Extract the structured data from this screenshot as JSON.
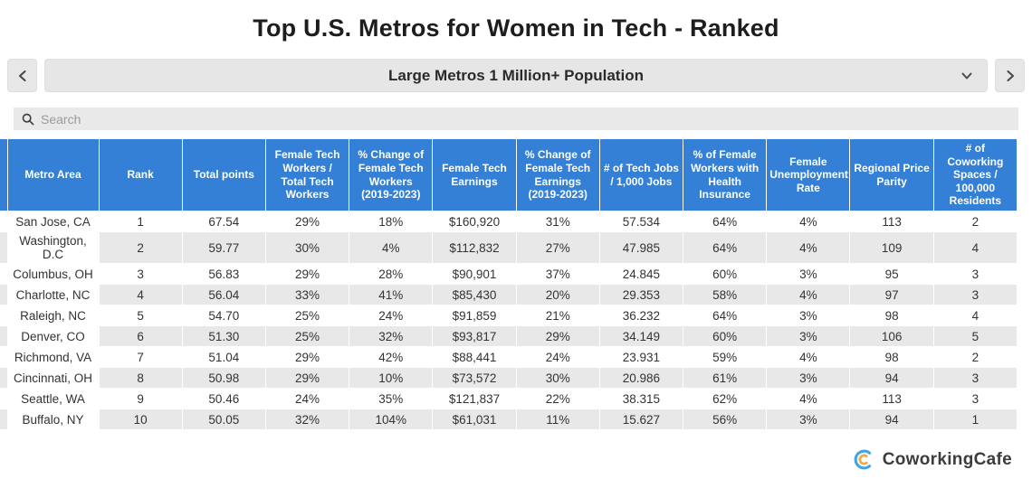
{
  "title": "Top U.S. Metros for Women in Tech - Ranked",
  "nav": {
    "prev_icon": "chevron-left-icon",
    "next_icon": "chevron-right-icon",
    "dropdown": {
      "selected": "Large Metros 1 Million+ Population",
      "caret_icon": "chevron-down-icon"
    }
  },
  "search": {
    "placeholder": "Search",
    "icon": "search-icon"
  },
  "table": {
    "columns": [
      "Metro Area",
      "Rank",
      "Total points",
      "Female Tech Workers / Total Tech Workers",
      "% Change of Female Tech Workers (2019-2023)",
      "Female Tech Earnings",
      "% Change of Female Tech Earnings (2019-2023)",
      "# of Tech Jobs / 1,000 Jobs",
      "% of Female Workers with Health Insurance",
      "Female Unemployment Rate",
      "Regional Price Parity",
      "# of Coworking Spaces / 100,000 Residents"
    ],
    "rows": [
      [
        "San Jose, CA",
        "1",
        "67.54",
        "29%",
        "18%",
        "$160,920",
        "31%",
        "57.534",
        "64%",
        "4%",
        "113",
        "2"
      ],
      [
        "Washington, D.C",
        "2",
        "59.77",
        "30%",
        "4%",
        "$112,832",
        "27%",
        "47.985",
        "64%",
        "4%",
        "109",
        "4"
      ],
      [
        "Columbus, OH",
        "3",
        "56.83",
        "29%",
        "28%",
        "$90,901",
        "37%",
        "24.845",
        "60%",
        "3%",
        "95",
        "3"
      ],
      [
        "Charlotte, NC",
        "4",
        "56.04",
        "33%",
        "41%",
        "$85,430",
        "20%",
        "29.353",
        "58%",
        "4%",
        "97",
        "3"
      ],
      [
        "Raleigh, NC",
        "5",
        "54.70",
        "25%",
        "24%",
        "$91,859",
        "21%",
        "36.232",
        "64%",
        "3%",
        "98",
        "4"
      ],
      [
        "Denver, CO",
        "6",
        "51.30",
        "25%",
        "32%",
        "$93,817",
        "29%",
        "34.149",
        "60%",
        "3%",
        "106",
        "5"
      ],
      [
        "Richmond, VA",
        "7",
        "51.04",
        "29%",
        "42%",
        "$88,441",
        "24%",
        "23.931",
        "59%",
        "4%",
        "98",
        "2"
      ],
      [
        "Cincinnati, OH",
        "8",
        "50.98",
        "29%",
        "10%",
        "$73,572",
        "30%",
        "20.986",
        "61%",
        "3%",
        "94",
        "3"
      ],
      [
        "Seattle, WA",
        "9",
        "50.46",
        "24%",
        "35%",
        "$121,837",
        "22%",
        "38.315",
        "62%",
        "4%",
        "113",
        "3"
      ],
      [
        "Buffalo, NY",
        "10",
        "50.05",
        "32%",
        "104%",
        "$61,031",
        "11%",
        "15.627",
        "56%",
        "3%",
        "94",
        "1"
      ]
    ]
  },
  "footer": {
    "brand": "CoworkingCafe",
    "logo_icon": "coworkingcafe-logo-icon"
  },
  "colors": {
    "header_bg": "#3480d6",
    "header_text": "#ffffff",
    "row_stripe": "#e8e8e8",
    "control_bg": "#e6e6e6",
    "logo_blue": "#41a5e5",
    "logo_orange": "#f3a93c"
  }
}
